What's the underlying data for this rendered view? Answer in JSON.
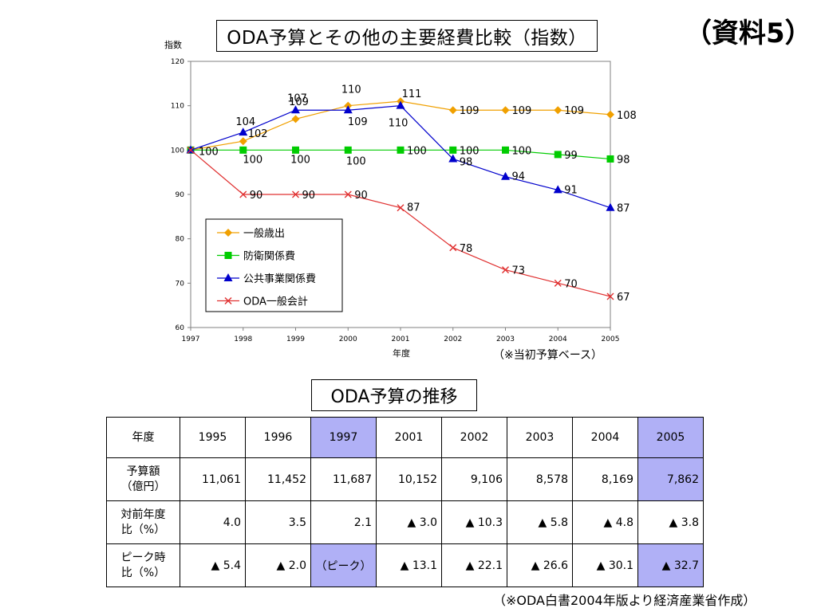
{
  "doc_label": "（資料5）",
  "chart_title": "ODA予算とその他の主要経費比較（指数）",
  "chart_data": {
    "type": "line",
    "title": "ODA予算とその他の主要経費比較（指数）",
    "ylabel": "指数",
    "xlabel": "年度",
    "ylim": [
      60,
      120
    ],
    "yticks": [
      60,
      70,
      80,
      90,
      100,
      110,
      120
    ],
    "x": [
      "1997",
      "1998",
      "1999",
      "2000",
      "2001",
      "2002",
      "2003",
      "2004",
      "2005"
    ],
    "note": "（※当初予算ベース）",
    "legend_position": "lower-left",
    "series": [
      {
        "name": "一般歳出",
        "color": "#f0a000",
        "marker": "diamond",
        "values": [
          100,
          102,
          107,
          110,
          111,
          109,
          109,
          109,
          108
        ],
        "labels": [
          "",
          "102",
          "107",
          "110",
          "111",
          "109",
          "109",
          "109",
          "108"
        ]
      },
      {
        "name": "防衛関係費",
        "color": "#00cc00",
        "marker": "square",
        "values": [
          100,
          100,
          100,
          100,
          100,
          100,
          100,
          99,
          98
        ],
        "labels": [
          "",
          "100",
          "100",
          "100",
          "100",
          "100",
          "100",
          "99",
          "98"
        ]
      },
      {
        "name": "公共事業関係費",
        "color": "#0000cc",
        "marker": "triangle",
        "values": [
          100,
          104,
          109,
          109,
          110,
          98,
          94,
          91,
          87
        ],
        "labels": [
          "100",
          "104",
          "109",
          "109",
          "110",
          "98",
          "94",
          "91",
          "87"
        ]
      },
      {
        "name": "ODA一般会計",
        "color": "#e03030",
        "marker": "cross",
        "values": [
          100,
          90,
          90,
          90,
          87,
          78,
          73,
          70,
          67
        ],
        "labels": [
          "",
          "90",
          "90",
          "90",
          "87",
          "78",
          "73",
          "70",
          "67"
        ]
      }
    ]
  },
  "table_title": "ODA予算の推移",
  "table": {
    "header_label": "年度",
    "years": [
      "1995",
      "1996",
      "1997",
      "2001",
      "2002",
      "2003",
      "2004",
      "2005"
    ],
    "highlight_columns": [
      2,
      7
    ],
    "rows": [
      {
        "label_line1": "予算額",
        "label_line2": "（億円）",
        "cells": [
          "11,061",
          "11,452",
          "11,687",
          "10,152",
          "9,106",
          "8,578",
          "8,169",
          "7,862"
        ],
        "highlight": [
          7
        ]
      },
      {
        "label_line1": "対前年度",
        "label_line2": "比（%）",
        "cells": [
          "4.0",
          "3.5",
          "2.1",
          "▲ 3.0",
          "▲ 10.3",
          "▲ 5.8",
          "▲ 4.8",
          "▲ 3.8"
        ],
        "highlight": []
      },
      {
        "label_line1": "ピーク時",
        "label_line2": "比（%）",
        "cells": [
          "▲ 5.4",
          "▲ 2.0",
          "（ピーク）",
          "▲ 13.1",
          "▲ 22.1",
          "▲ 26.6",
          "▲ 30.1",
          "▲ 32.7"
        ],
        "highlight": [
          2,
          7
        ]
      }
    ]
  },
  "footer": "（※ODA白書2004年版より経済産業省作成）"
}
